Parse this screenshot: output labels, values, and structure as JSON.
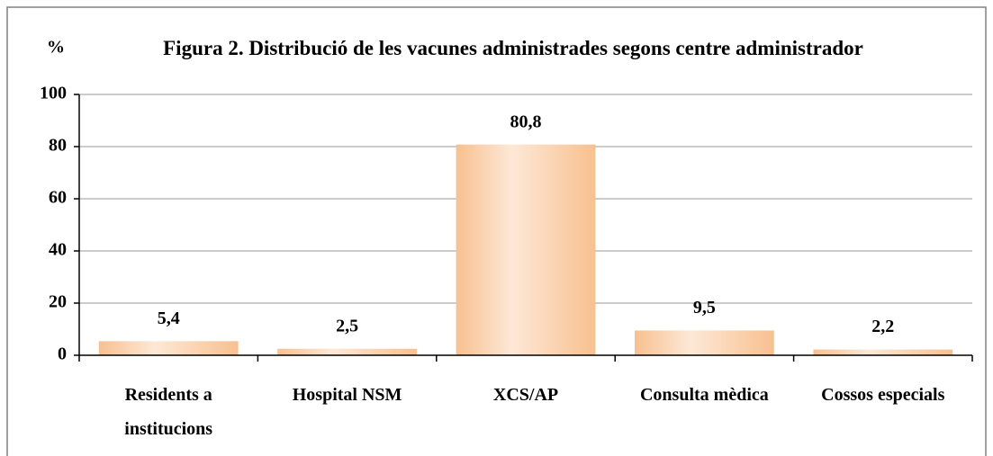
{
  "chart_data": {
    "type": "bar",
    "title": "Figura 2. Distribució de les vacunes administrades segons centre administrador",
    "y_label": "%",
    "categories": [
      "Residents a institucions",
      "Hospital NSM",
      "XCS/AP",
      "Consulta mèdica",
      "Cossos especials"
    ],
    "values": [
      5.4,
      2.5,
      80.8,
      9.5,
      2.2
    ],
    "value_labels": [
      "5,4",
      "2,5",
      "80,8",
      "9,5",
      "2,2"
    ],
    "color": "#f8c090",
    "ylim": [
      0,
      100
    ],
    "yticks": [
      0,
      20,
      40,
      60,
      80,
      100
    ],
    "grid": true
  }
}
